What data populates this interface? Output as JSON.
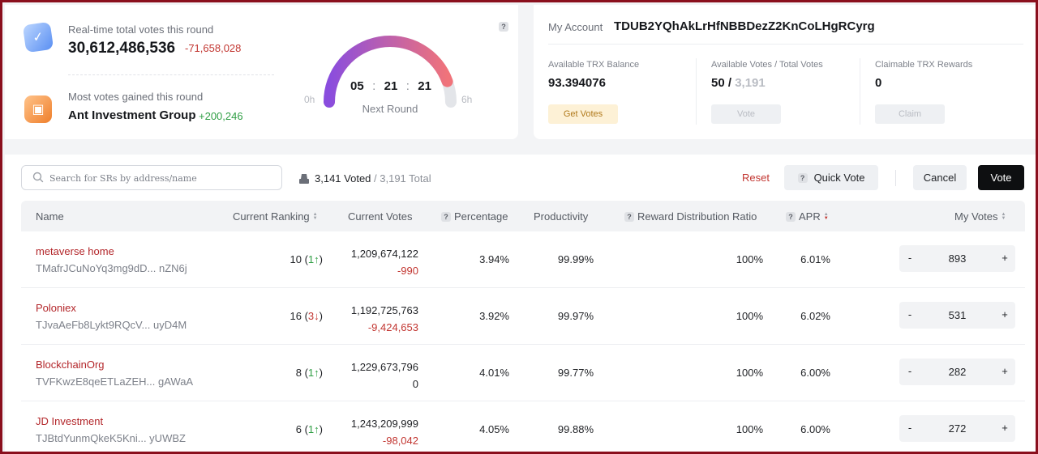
{
  "stats": {
    "total_votes_label": "Real-time total votes this round",
    "total_votes_value": "30,612,486,536",
    "total_votes_change": "-71,658,028",
    "most_gained_label": "Most votes gained this round",
    "most_gained_name": "Ant Investment Group",
    "most_gained_change": "+200,246"
  },
  "round": {
    "hours": "05",
    "minutes": "21",
    "seconds": "21",
    "separator": ":",
    "caption": "Next Round",
    "min_label": "0h",
    "max_label": "6h",
    "progress_fraction": 0.89,
    "help_icon": "?"
  },
  "account": {
    "label": "My Account",
    "address": "TDUB2YQhAkLrHfNBBDezZ2KnCoLHgRCyrg",
    "balance_label": "Available TRX Balance",
    "balance_value": "93.394076",
    "get_votes_label": "Get Votes",
    "votes_label": "Available Votes / Total Votes",
    "votes_available": "50 / ",
    "votes_total": "3,191",
    "vote_label": "Vote",
    "rewards_label": "Claimable TRX Rewards",
    "rewards_value": "0",
    "claim_label": "Claim"
  },
  "toolbar": {
    "search_placeholder": "Search for SRs by address/name",
    "voted_count": "3,141 Voted",
    "voted_sep": " / ",
    "voted_total": "3,191 Total",
    "reset_label": "Reset",
    "quick_vote_label": "Quick Vote",
    "cancel_label": "Cancel",
    "vote_label": "Vote"
  },
  "table": {
    "headers": {
      "name": "Name",
      "ranking": "Current Ranking",
      "votes": "Current Votes",
      "percentage": "Percentage",
      "productivity": "Productivity",
      "ratio": "Reward Distribution Ratio",
      "apr": "APR",
      "my_votes": "My Votes"
    },
    "rows": [
      {
        "name": "metaverse home",
        "address": "TMafrJCuNoYq3mg9dD... nZN6j",
        "rank": "10 (",
        "rank_arrow": "1↑",
        "rank_dir": "up",
        "rank_close": ")",
        "votes": "1,209,674,122",
        "change": "-990",
        "percentage": "3.94%",
        "productivity": "99.99%",
        "ratio": "100%",
        "apr": "6.01%",
        "my_votes": "893"
      },
      {
        "name": "Poloniex",
        "address": "TJvaAeFb8Lykt9RQcV... uyD4M",
        "rank": "16 (",
        "rank_arrow": "3↓",
        "rank_dir": "down",
        "rank_close": ")",
        "votes": "1,192,725,763",
        "change": "-9,424,653",
        "percentage": "3.92%",
        "productivity": "99.97%",
        "ratio": "100%",
        "apr": "6.02%",
        "my_votes": "531"
      },
      {
        "name": "BlockchainOrg",
        "address": "TVFKwzE8qeETLaZEH... gAWaA",
        "rank": "8 (",
        "rank_arrow": "1↑",
        "rank_dir": "up",
        "rank_close": ")",
        "votes": "1,229,673,796",
        "change": "0",
        "percentage": "4.01%",
        "productivity": "99.77%",
        "ratio": "100%",
        "apr": "6.00%",
        "my_votes": "282"
      },
      {
        "name": "JD Investment",
        "address": "TJBtdYunmQkeK5Kni... yUWBZ",
        "rank": "6 (",
        "rank_arrow": "1↑",
        "rank_dir": "up",
        "rank_close": ")",
        "votes": "1,243,209,999",
        "change": "-98,042",
        "percentage": "4.05%",
        "productivity": "99.88%",
        "ratio": "100%",
        "apr": "6.00%",
        "my_votes": "272"
      }
    ],
    "stepper_minus": "-",
    "stepper_plus": "+"
  },
  "colors": {
    "accent_red": "#b3262a",
    "negative": "#c23631",
    "positive": "#2f9e44",
    "frame_border": "#8a0f1d",
    "gauge_start": "#8a4dde",
    "gauge_end": "#f0737a"
  },
  "icons": {
    "votes_icon": "ballot-icon",
    "gain_icon": "trophy-icon",
    "search_icon": "search-icon",
    "voted_icon": "ballot-box-icon",
    "help_icon": "question-icon",
    "sort_icon": "sort-arrows-icon"
  }
}
